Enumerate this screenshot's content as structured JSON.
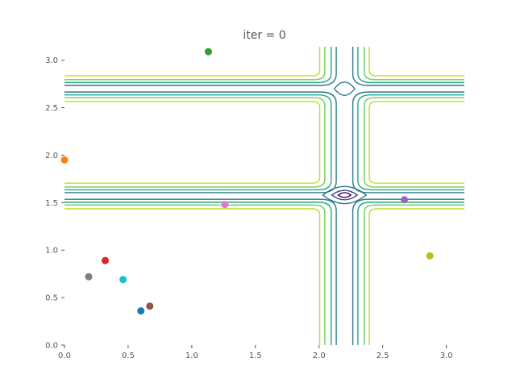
{
  "chart_data": {
    "type": "scatter",
    "title": "iter = 0",
    "xlabel": "",
    "ylabel": "",
    "xlim": [
      0,
      3.14159
    ],
    "ylim": [
      0,
      3.14159
    ],
    "grid": false,
    "legend": "none",
    "x_ticks": [
      "0.0",
      "0.5",
      "1.0",
      "1.5",
      "2.0",
      "2.5",
      "3.0"
    ],
    "y_ticks": [
      "0.0",
      "0.5",
      "1.0",
      "1.5",
      "2.0",
      "2.5",
      "3.0"
    ],
    "points": [
      {
        "x": 0.6,
        "y": 0.36,
        "color": "#1f77b4"
      },
      {
        "x": 0.0,
        "y": 1.95,
        "color": "#ff7f0e"
      },
      {
        "x": 1.13,
        "y": 3.09,
        "color": "#2ca02c"
      },
      {
        "x": 0.32,
        "y": 0.89,
        "color": "#d62728"
      },
      {
        "x": 2.67,
        "y": 1.53,
        "color": "#9467bd"
      },
      {
        "x": 0.67,
        "y": 0.41,
        "color": "#8c564b"
      },
      {
        "x": 1.26,
        "y": 1.48,
        "color": "#e377c2"
      },
      {
        "x": 0.19,
        "y": 0.72,
        "color": "#7f7f7f"
      },
      {
        "x": 2.87,
        "y": 0.94,
        "color": "#bcbd22"
      },
      {
        "x": 0.46,
        "y": 0.69,
        "color": "#17becf"
      }
    ],
    "contour_levels": [
      {
        "rx": 0.17,
        "ry": 0.11,
        "color": "#bcdf27"
      },
      {
        "rx": 0.08,
        "ry": 0.06,
        "color": "#6ece58"
      },
      {
        "rx": 0.04,
        "ry": 0.035,
        "color": "#22a884"
      },
      {
        "rx": 0.02,
        "ry": 0.02,
        "color": "#2a788e"
      }
    ],
    "contour_minima": [
      {
        "x": 2.2,
        "y": 1.58,
        "color": "#440154",
        "rx": 0.05,
        "ry": 0.025
      },
      {
        "x": 2.2,
        "y": 1.58,
        "color": "#414487",
        "rx": 0.1,
        "ry": 0.05
      },
      {
        "x": 2.2,
        "y": 1.58,
        "color": "#2a788e",
        "rx": 0.17,
        "ry": 0.09
      },
      {
        "x": 2.2,
        "y": 2.7,
        "color": "#2a788e",
        "rx": 0.08,
        "ry": 0.07
      }
    ],
    "contour_center": {
      "x": 2.2,
      "y": 1.57,
      "y2": 2.7
    }
  }
}
